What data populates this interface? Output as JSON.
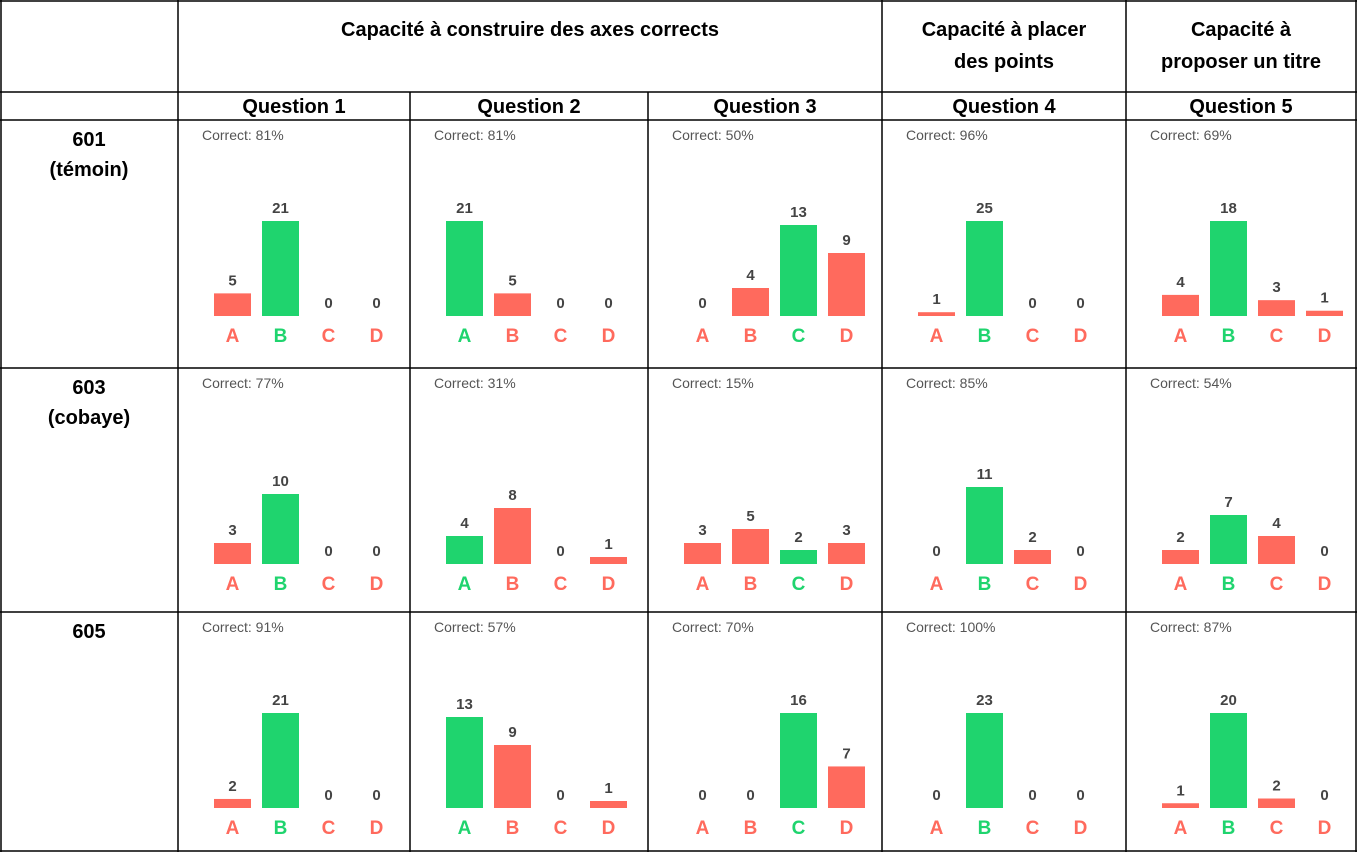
{
  "header": {
    "groups": [
      {
        "lines": [
          "Capacité à construire des axes corrects"
        ]
      },
      {
        "lines": [
          "Capacité à placer",
          "des points"
        ]
      },
      {
        "lines": [
          "Capacité à",
          "proposer un titre"
        ]
      }
    ],
    "questions": [
      "Question 1",
      "Question 2",
      "Question 3",
      "Question 4",
      "Question 5"
    ]
  },
  "colors": {
    "correct": "#1fd46e",
    "wrong": "#ff6a5d"
  },
  "rows": [
    {
      "label": [
        "601",
        "(témoin)"
      ],
      "cells": [
        {
          "correct": "Correct: 81%",
          "options": [
            "A",
            "B",
            "C",
            "D"
          ],
          "values": [
            5,
            21,
            0,
            0
          ],
          "is_correct": [
            false,
            true,
            false,
            false
          ]
        },
        {
          "correct": "Correct: 81%",
          "options": [
            "A",
            "B",
            "C",
            "D"
          ],
          "values": [
            21,
            5,
            0,
            0
          ],
          "is_correct": [
            true,
            false,
            false,
            false
          ]
        },
        {
          "correct": "Correct: 50%",
          "options": [
            "A",
            "B",
            "C",
            "D"
          ],
          "values": [
            0,
            4,
            13,
            9
          ],
          "is_correct": [
            false,
            false,
            true,
            false
          ]
        },
        {
          "correct": "Correct: 96%",
          "options": [
            "A",
            "B",
            "C",
            "D"
          ],
          "values": [
            1,
            25,
            0,
            0
          ],
          "is_correct": [
            false,
            true,
            false,
            false
          ]
        },
        {
          "correct": "Correct: 69%",
          "options": [
            "A",
            "B",
            "C",
            "D"
          ],
          "values": [
            4,
            18,
            3,
            1
          ],
          "is_correct": [
            false,
            true,
            false,
            false
          ]
        }
      ]
    },
    {
      "label": [
        "603",
        "(cobaye)"
      ],
      "cells": [
        {
          "correct": "Correct: 77%",
          "options": [
            "A",
            "B",
            "C",
            "D"
          ],
          "values": [
            3,
            10,
            0,
            0
          ],
          "is_correct": [
            false,
            true,
            false,
            false
          ]
        },
        {
          "correct": "Correct: 31%",
          "options": [
            "A",
            "B",
            "C",
            "D"
          ],
          "values": [
            4,
            8,
            0,
            1
          ],
          "is_correct": [
            true,
            false,
            false,
            false
          ]
        },
        {
          "correct": "Correct: 15%",
          "options": [
            "A",
            "B",
            "C",
            "D"
          ],
          "values": [
            3,
            5,
            2,
            3
          ],
          "is_correct": [
            false,
            false,
            true,
            false
          ]
        },
        {
          "correct": "Correct: 85%",
          "options": [
            "A",
            "B",
            "C",
            "D"
          ],
          "values": [
            0,
            11,
            2,
            0
          ],
          "is_correct": [
            false,
            true,
            false,
            false
          ]
        },
        {
          "correct": "Correct: 54%",
          "options": [
            "A",
            "B",
            "C",
            "D"
          ],
          "values": [
            2,
            7,
            4,
            0
          ],
          "is_correct": [
            false,
            true,
            false,
            false
          ]
        }
      ]
    },
    {
      "label": [
        "605"
      ],
      "cells": [
        {
          "correct": "Correct: 91%",
          "options": [
            "A",
            "B",
            "C",
            "D"
          ],
          "values": [
            2,
            21,
            0,
            0
          ],
          "is_correct": [
            false,
            true,
            false,
            false
          ]
        },
        {
          "correct": "Correct: 57%",
          "options": [
            "A",
            "B",
            "C",
            "D"
          ],
          "values": [
            13,
            9,
            0,
            1
          ],
          "is_correct": [
            true,
            false,
            false,
            false
          ]
        },
        {
          "correct": "Correct: 70%",
          "options": [
            "A",
            "B",
            "C",
            "D"
          ],
          "values": [
            0,
            0,
            16,
            7
          ],
          "is_correct": [
            false,
            false,
            true,
            false
          ]
        },
        {
          "correct": "Correct: 100%",
          "options": [
            "A",
            "B",
            "C",
            "D"
          ],
          "values": [
            0,
            23,
            0,
            0
          ],
          "is_correct": [
            false,
            true,
            false,
            false
          ]
        },
        {
          "correct": "Correct: 87%",
          "options": [
            "A",
            "B",
            "C",
            "D"
          ],
          "values": [
            1,
            20,
            2,
            0
          ],
          "is_correct": [
            false,
            true,
            false,
            false
          ]
        }
      ]
    }
  ]
}
